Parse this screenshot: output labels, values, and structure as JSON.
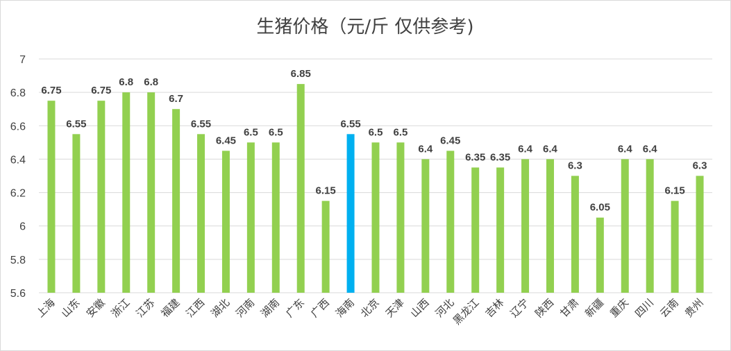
{
  "chart_data": {
    "type": "bar",
    "title": "生猪价格（元/斤 仅供参考)",
    "categories": [
      "上海",
      "山东",
      "安徽",
      "浙江",
      "江苏",
      "福建",
      "江西",
      "湖北",
      "河南",
      "湖南",
      "广东",
      "广西",
      "海南",
      "北京",
      "天津",
      "山西",
      "河北",
      "黑龙江",
      "吉林",
      "辽宁",
      "陕西",
      "甘肃",
      "新疆",
      "重庆",
      "四川",
      "云南",
      "贵州"
    ],
    "values": [
      6.75,
      6.55,
      6.75,
      6.8,
      6.8,
      6.7,
      6.55,
      6.45,
      6.5,
      6.5,
      6.85,
      6.15,
      6.55,
      6.5,
      6.5,
      6.4,
      6.45,
      6.35,
      6.35,
      6.4,
      6.4,
      6.3,
      6.05,
      6.4,
      6.4,
      6.15,
      6.3
    ],
    "value_labels": [
      "6.75",
      "6.55",
      "6.75",
      "6.8",
      "6.8",
      "6.7",
      "6.55",
      "6.45",
      "6.5",
      "6.5",
      "6.85",
      "6.15",
      "6.55",
      "6.5",
      "6.5",
      "6.4",
      "6.45",
      "6.35",
      "6.35",
      "6.4",
      "6.4",
      "6.3",
      "6.05",
      "6.4",
      "6.4",
      "6.15",
      "6.3"
    ],
    "ylim": [
      5.6,
      7
    ],
    "yticks": [
      5.6,
      5.8,
      6,
      6.2,
      6.4,
      6.6,
      6.8,
      7
    ],
    "ytick_labels": [
      "5.6",
      "5.8",
      "6",
      "6.2",
      "6.4",
      "6.6",
      "6.8",
      "7"
    ],
    "xlabel": "",
    "ylabel": "",
    "grid": true,
    "legend": "none",
    "highlight_category": "海南",
    "colors": {
      "bar": "#92d050",
      "highlight": "#00b0f0",
      "grid": "#d9d9d9",
      "text": "#404040"
    }
  }
}
